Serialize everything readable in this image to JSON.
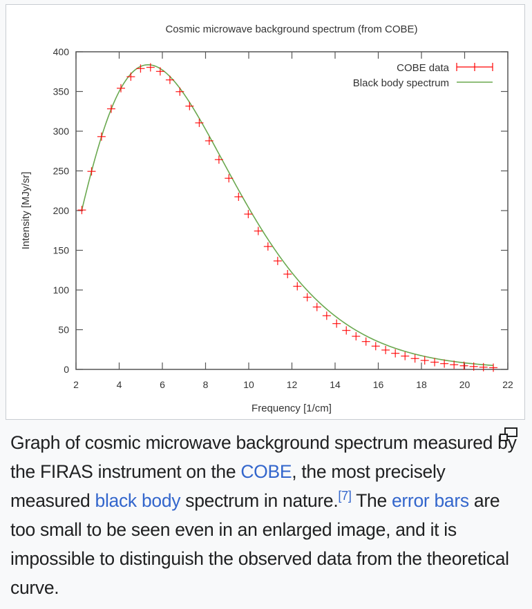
{
  "chart_data": {
    "type": "scatter",
    "title": "Cosmic microwave background spectrum (from COBE)",
    "xlabel": "Frequency [1/cm]",
    "ylabel": "Intensity [MJy/sr]",
    "xlim": [
      2,
      22
    ],
    "ylim": [
      0,
      400
    ],
    "xticks": [
      "2",
      "4",
      "6",
      "8",
      "10",
      "12",
      "14",
      "16",
      "18",
      "20",
      "22"
    ],
    "yticks": [
      "0",
      "50",
      "100",
      "150",
      "200",
      "250",
      "300",
      "350",
      "400"
    ],
    "grid": false,
    "legend_position": "top-right",
    "series": [
      {
        "name": "COBE data",
        "style": "points-with-errorbars",
        "color": "#ff0000",
        "x": [
          2.27,
          2.72,
          3.18,
          3.63,
          4.08,
          4.54,
          4.99,
          5.45,
          5.9,
          6.35,
          6.81,
          7.26,
          7.71,
          8.17,
          8.62,
          9.08,
          9.53,
          9.98,
          10.44,
          10.89,
          11.34,
          11.8,
          12.25,
          12.71,
          13.16,
          13.61,
          14.07,
          14.52,
          14.97,
          15.43,
          15.88,
          16.34,
          16.79,
          17.24,
          17.7,
          18.15,
          18.61,
          19.06,
          19.51,
          19.97,
          20.42,
          20.87,
          21.33
        ],
        "y": [
          200.7,
          249.4,
          293.2,
          328.2,
          354.1,
          368.6,
          378.9,
          380.4,
          375.3,
          364.6,
          349.8,
          331.6,
          310.5,
          287.9,
          264.2,
          240.7,
          217.4,
          195.6,
          174.3,
          154.8,
          136.6,
          120.0,
          104.7,
          90.9,
          78.6,
          67.6,
          57.7,
          49.1,
          41.7,
          35.1,
          29.3,
          24.4,
          20.3,
          16.8,
          13.7,
          11.3,
          9.1,
          7.3,
          5.9,
          4.6,
          3.6,
          2.8,
          2.2
        ]
      },
      {
        "name": "Black body spectrum",
        "style": "line",
        "color": "#6aa84f",
        "temperature_model": "Planck curve, T = 2.725 K"
      }
    ]
  },
  "caption": {
    "part1": "Graph of cosmic microwave background spectrum measured by the FIRAS instrument on the ",
    "link1": "COBE",
    "part2": ", the most precisely measured ",
    "link2": "black body",
    "part3": " spectrum in nature.",
    "ref": "[7]",
    "part4": " The ",
    "link3": "error bars",
    "part5": " are too small to be seen even in an enlarged image, and it is impossible to distinguish the observed data from the theoretical curve."
  },
  "enlarge_icon": "enlarge-icon"
}
